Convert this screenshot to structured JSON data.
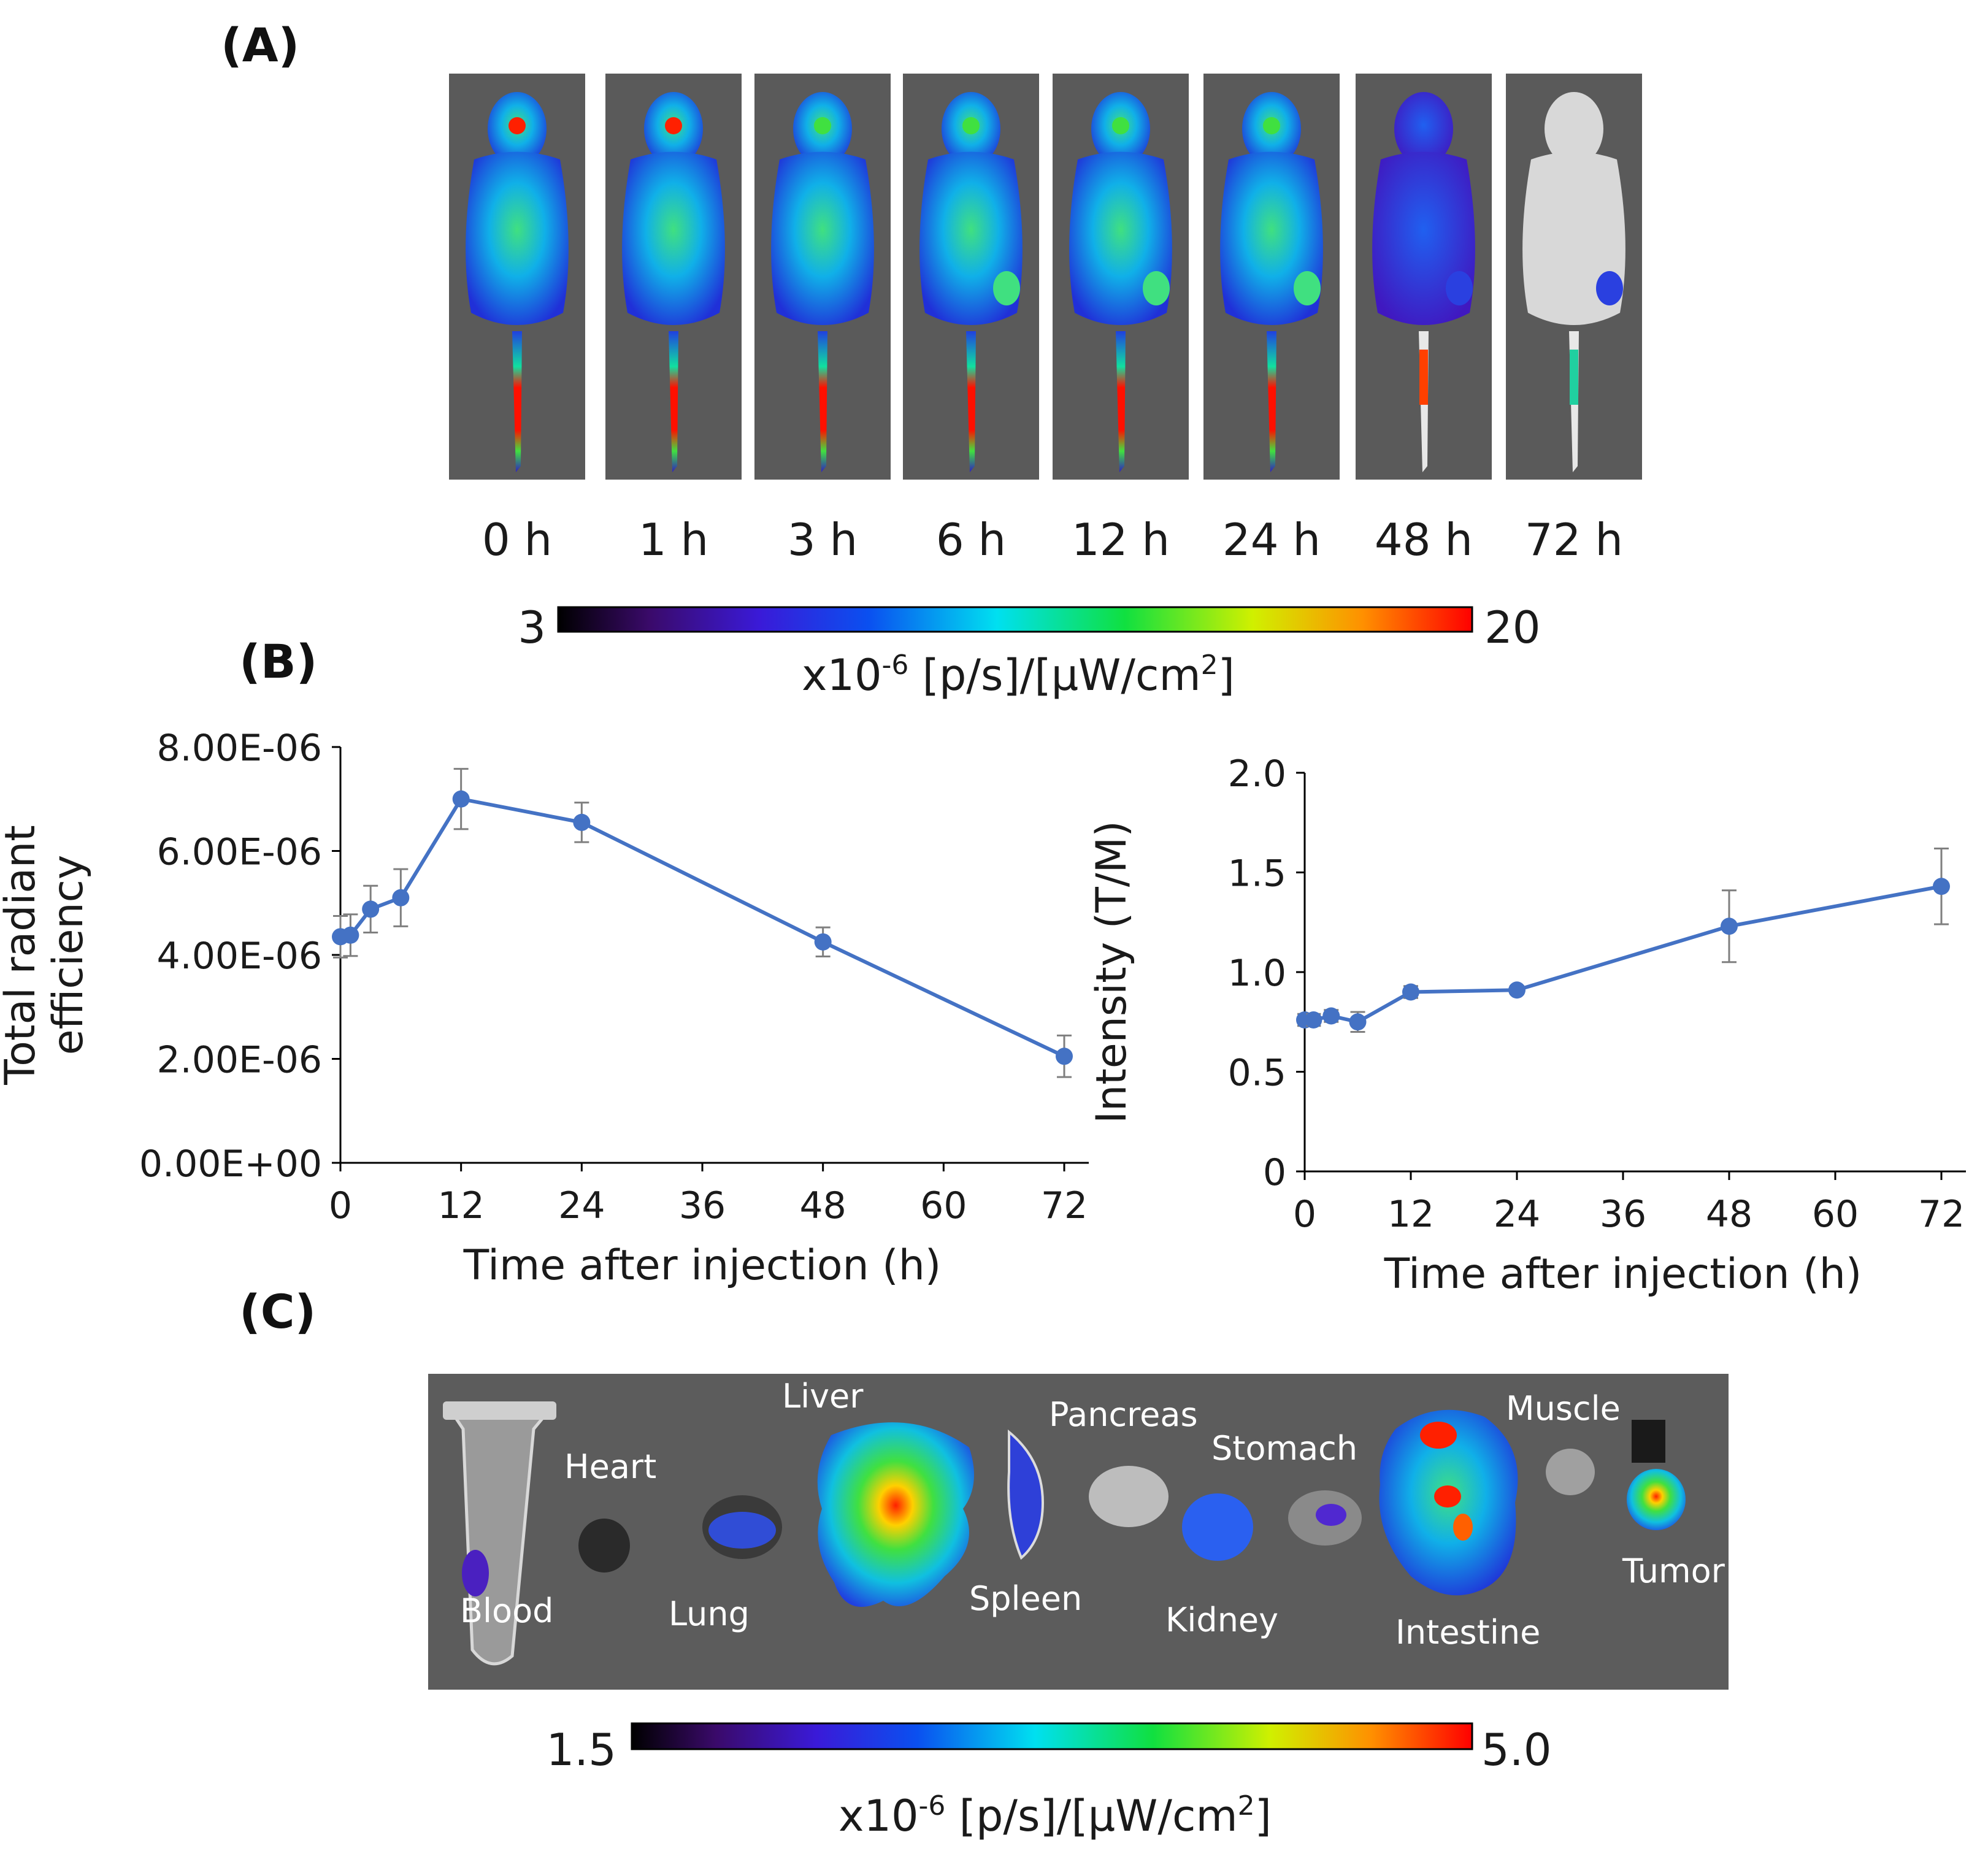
{
  "panels": {
    "a": "(A)",
    "b": "(B)",
    "c": "(C)"
  },
  "timepoints": [
    "0 h",
    "1 h",
    "3 h",
    "6 h",
    "12 h",
    "24 h",
    "48 h",
    "72 h"
  ],
  "colorbar_top": {
    "min": "3",
    "max": "20",
    "unit_prefix": "x10",
    "unit_exp": "-6",
    "unit_main": " [p/s]/[µW/cm",
    "unit_sq": "2",
    "unit_end": "]"
  },
  "colorbar_bottom": {
    "min": "1.5",
    "max": "5.0",
    "unit_prefix": "x10",
    "unit_exp": "-6",
    "unit_main": " [p/s]/[µW/cm",
    "unit_sq": "2",
    "unit_end": "]"
  },
  "organs": {
    "blood": "Blood",
    "heart": "Heart",
    "lung": "Lung",
    "liver": "Liver",
    "pancreas": "Pancreas",
    "spleen": "Spleen",
    "stomach": "Stomach",
    "kidney": "Kidney",
    "muscle": "Muscle",
    "intestine": "Intestine",
    "tumor": "Tumor"
  },
  "colors": {
    "series": "#4472C4",
    "errorbar": "#7f7f7f",
    "image_bg": "#5a5a5a"
  },
  "chart_data": [
    {
      "type": "line",
      "xlabel": "Time after injection (h)",
      "ylabel": [
        "Total radiant",
        "efficiency"
      ],
      "xlim": [
        0,
        72
      ],
      "ylim": [
        0,
        8e-06
      ],
      "xticks": [
        "0",
        "12",
        "24",
        "36",
        "48",
        "60",
        "72"
      ],
      "yticks": [
        "0.00E+00",
        "2.00E-06",
        "4.00E-06",
        "6.00E-06",
        "8.00E-06"
      ],
      "series": [
        {
          "x": [
            0,
            1,
            3,
            6,
            12,
            24,
            48,
            72
          ],
          "y": [
            4.35e-06,
            4.38e-06,
            4.88e-06,
            5.1e-06,
            7e-06,
            6.55e-06,
            4.25e-06,
            2.05e-06
          ],
          "err": [
            4e-07,
            4e-07,
            4.5e-07,
            5.5e-07,
            5.8e-07,
            3.8e-07,
            2.8e-07,
            4e-07
          ]
        }
      ]
    },
    {
      "type": "line",
      "xlabel": "Time after injection (h)",
      "ylabel": [
        "Intensity (T/M)"
      ],
      "xlim": [
        0,
        72
      ],
      "ylim": [
        0,
        2.0
      ],
      "xticks": [
        "0",
        "12",
        "24",
        "36",
        "48",
        "60",
        "72"
      ],
      "yticks": [
        "0",
        "0.5",
        "1.0",
        "1.5",
        "2.0"
      ],
      "series": [
        {
          "x": [
            0,
            1,
            3,
            6,
            12,
            24,
            48,
            72
          ],
          "y": [
            0.76,
            0.76,
            0.78,
            0.75,
            0.9,
            0.91,
            1.23,
            1.43
          ],
          "err": [
            0.03,
            0.03,
            0.03,
            0.05,
            0.03,
            0.02,
            0.18,
            0.19
          ]
        }
      ]
    }
  ]
}
